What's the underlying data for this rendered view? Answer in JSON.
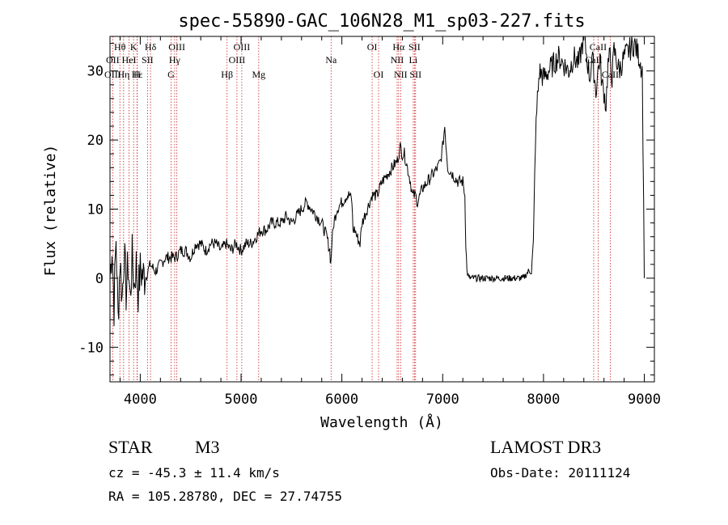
{
  "chart_data": {
    "type": "line",
    "title": "spec-55890-GAC_106N28_M1_sp03-227.fits",
    "xlabel": "Wavelength (Å)",
    "ylabel": "Flux (relative)",
    "xlim": [
      3700,
      9100
    ],
    "ylim": [
      -15,
      35
    ],
    "xticks": [
      4000,
      5000,
      6000,
      7000,
      8000,
      9000
    ],
    "yticks": [
      -10,
      0,
      10,
      20,
      30
    ],
    "series": [
      {
        "name": "spectrum",
        "x": [
          3700,
          3720,
          3740,
          3760,
          3780,
          3800,
          3820,
          3840,
          3860,
          3880,
          3900,
          3920,
          3940,
          3960,
          3980,
          4000,
          4050,
          4100,
          4150,
          4200,
          4250,
          4300,
          4350,
          4400,
          4450,
          4500,
          4550,
          4600,
          4650,
          4700,
          4750,
          4800,
          4850,
          4900,
          4950,
          5000,
          5050,
          5100,
          5150,
          5200,
          5250,
          5300,
          5350,
          5400,
          5450,
          5500,
          5550,
          5600,
          5650,
          5700,
          5750,
          5800,
          5850,
          5880,
          5890,
          5900,
          5920,
          5950,
          6000,
          6050,
          6080,
          6100,
          6110,
          6130,
          6150,
          6180,
          6200,
          6250,
          6300,
          6350,
          6400,
          6450,
          6500,
          6550,
          6580,
          6600,
          6620,
          6650,
          6680,
          6700,
          6730,
          6750,
          6800,
          6850,
          6900,
          6950,
          6980,
          7000,
          7020,
          7050,
          7100,
          7150,
          7200,
          7220,
          7230,
          7240,
          7260,
          7300,
          7400,
          7500,
          7600,
          7700,
          7800,
          7850,
          7880,
          7900,
          7920,
          7940,
          7960,
          8000,
          8050,
          8100,
          8150,
          8200,
          8250,
          8300,
          8350,
          8400,
          8420,
          8440,
          8460,
          8480,
          8500,
          8520,
          8540,
          8560,
          8580,
          8600,
          8620,
          8640,
          8660,
          8680,
          8700,
          8750,
          8800,
          8850,
          8900,
          8950,
          8980,
          9000
        ],
        "y": [
          0,
          5,
          -4,
          6,
          -6,
          3,
          -3,
          4,
          -2,
          2,
          -3,
          3,
          -1,
          2,
          -2,
          1,
          0,
          2,
          1,
          2,
          3,
          3,
          3,
          4,
          4,
          3,
          5,
          5,
          4,
          5,
          5,
          4,
          5,
          4,
          5,
          4,
          5,
          5,
          6,
          7,
          7,
          8,
          8,
          8,
          9,
          8,
          9,
          10,
          11,
          10,
          9,
          8,
          6,
          4,
          2,
          5,
          8,
          10,
          11,
          12,
          12,
          11,
          7,
          7,
          6,
          5,
          8,
          10,
          12,
          12,
          14,
          15,
          16,
          17,
          19,
          18,
          18,
          16,
          14,
          12,
          12,
          11,
          13,
          14,
          15,
          16,
          17,
          19,
          22,
          16,
          15,
          14,
          14,
          12,
          5,
          1,
          0,
          0,
          0,
          0,
          0,
          0,
          0,
          1,
          1,
          5,
          20,
          26,
          30,
          29,
          30,
          31,
          32,
          31,
          30,
          32,
          31,
          35,
          33,
          31,
          29,
          32,
          30,
          27,
          30,
          32,
          28,
          27,
          25,
          31,
          32,
          29,
          33,
          30,
          32,
          33,
          34,
          32,
          30,
          0
        ]
      }
    ],
    "line_labels": [
      {
        "label": "Hθ",
        "x": 3798,
        "row": 1
      },
      {
        "label": "K",
        "x": 3934,
        "row": 1
      },
      {
        "label": "Hδ",
        "x": 4102,
        "row": 1
      },
      {
        "label": "OIII",
        "x": 4363,
        "row": 1
      },
      {
        "label": "OIII",
        "x": 5007,
        "row": 1
      },
      {
        "label": "OI",
        "x": 6300,
        "row": 1
      },
      {
        "label": "Hα",
        "x": 6563,
        "row": 1
      },
      {
        "label": "SII",
        "x": 6720,
        "row": 1
      },
      {
        "label": "CaII",
        "x": 8542,
        "row": 1
      },
      {
        "label": "OII",
        "x": 3727,
        "row": 2
      },
      {
        "label": "HeI",
        "x": 3889,
        "row": 2
      },
      {
        "label": "SII",
        "x": 4072,
        "row": 2
      },
      {
        "label": "Hγ",
        "x": 4341,
        "row": 2
      },
      {
        "label": "OIII",
        "x": 4959,
        "row": 2
      },
      {
        "label": "Na",
        "x": 5893,
        "row": 2
      },
      {
        "label": "NII",
        "x": 6548,
        "row": 2
      },
      {
        "label": "Li",
        "x": 6708,
        "row": 2
      },
      {
        "label": "CaII",
        "x": 8498,
        "row": 2
      },
      {
        "label": "OIII",
        "x": 3727,
        "row": 3
      },
      {
        "label": "Hε",
        "x": 3970,
        "row": 3
      },
      {
        "label": "Hη",
        "x": 3835,
        "row": 3
      },
      {
        "label": "H",
        "x": 3968,
        "row": 3
      },
      {
        "label": "G",
        "x": 4305,
        "row": 3
      },
      {
        "label": "Hβ",
        "x": 4861,
        "row": 3
      },
      {
        "label": "Mg",
        "x": 5175,
        "row": 3
      },
      {
        "label": "OI",
        "x": 6364,
        "row": 3
      },
      {
        "label": "NII",
        "x": 6583,
        "row": 3
      },
      {
        "label": "SII",
        "x": 6731,
        "row": 3
      },
      {
        "label": "CaII",
        "x": 8662,
        "row": 3
      }
    ],
    "marker_lines": [
      3727,
      3798,
      3835,
      3889,
      3934,
      3968,
      3970,
      4072,
      4102,
      4305,
      4341,
      4363,
      4861,
      4959,
      5007,
      5175,
      5893,
      6300,
      6364,
      6548,
      6563,
      6583,
      6708,
      6720,
      6731,
      8498,
      8542,
      8662
    ]
  },
  "footer": {
    "class_label": "STAR",
    "subclass": "M3",
    "survey": "LAMOST DR3",
    "cz": "cz = -45.3 ± 11.4 km/s",
    "obs_date": "Obs-Date: 20111124",
    "coords": "RA = 105.28780, DEC =  27.74755"
  },
  "colors": {
    "marker": "#cc2222",
    "line": "#000000"
  }
}
